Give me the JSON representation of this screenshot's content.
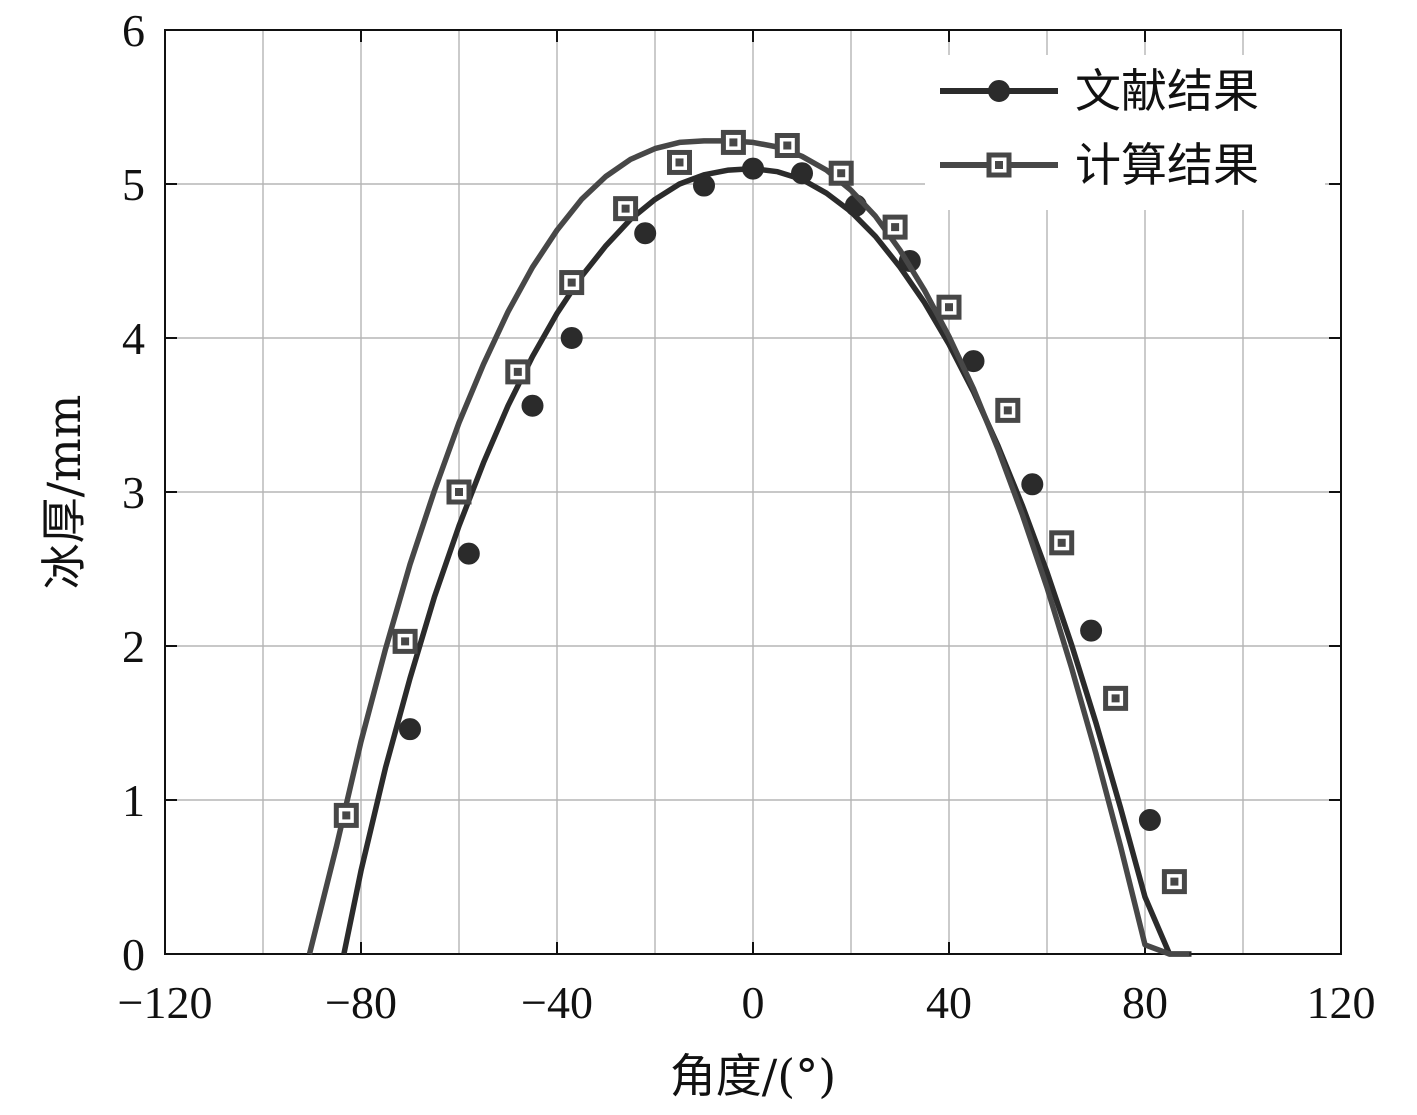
{
  "chart_data": {
    "type": "line",
    "xlabel": "角度/(°)",
    "ylabel": "冰厚/mm",
    "xlim": [
      -120,
      120
    ],
    "ylim": [
      0,
      6
    ],
    "xticks": [
      "−120",
      "−80",
      "−40",
      "0",
      "40",
      "80",
      "120"
    ],
    "yticks": [
      "0",
      "1",
      "2",
      "3",
      "4",
      "5",
      "6"
    ],
    "grid": true,
    "legend_position": "top-right",
    "series": [
      {
        "name": "文献结果",
        "marker": "circle",
        "color": "#2b2b2b",
        "curve_x": [
          -83.5,
          -80,
          -75,
          -70,
          -65,
          -60,
          -55,
          -50,
          -45,
          -40,
          -35,
          -30,
          -25,
          -20,
          -15,
          -10,
          -5,
          0,
          5,
          10,
          15,
          20,
          25,
          30,
          35,
          40,
          45,
          50,
          55,
          60,
          65,
          70,
          75,
          80,
          85,
          89.5
        ],
        "curve_y": [
          0.0,
          0.54,
          1.21,
          1.79,
          2.32,
          2.78,
          3.19,
          3.56,
          3.88,
          4.16,
          4.4,
          4.6,
          4.77,
          4.9,
          5.0,
          5.06,
          5.09,
          5.1,
          5.08,
          5.03,
          4.94,
          4.82,
          4.66,
          4.46,
          4.23,
          3.96,
          3.65,
          3.3,
          2.91,
          2.48,
          2.01,
          1.5,
          0.95,
          0.37,
          0.0,
          0.0
        ],
        "points_x": [
          -70,
          -58,
          -45,
          -37,
          -22,
          -10,
          0,
          10,
          21,
          32,
          45,
          57,
          69,
          81
        ],
        "points_y": [
          1.46,
          2.6,
          3.56,
          4.0,
          4.68,
          4.99,
          5.1,
          5.07,
          4.86,
          4.5,
          3.85,
          3.05,
          2.1,
          0.87
        ]
      },
      {
        "name": "计算结果",
        "marker": "square",
        "color": "#474747",
        "curve_x": [
          -90.5,
          -85,
          -80,
          -75,
          -70,
          -65,
          -60,
          -55,
          -50,
          -45,
          -40,
          -35,
          -30,
          -25,
          -20,
          -15,
          -10,
          -5,
          0,
          5,
          10,
          15,
          20,
          25,
          30,
          35,
          40,
          45,
          50,
          55,
          60,
          65,
          70,
          75,
          80,
          85,
          89
        ],
        "curve_y": [
          0.0,
          0.7,
          1.38,
          1.98,
          2.53,
          3.01,
          3.45,
          3.83,
          4.17,
          4.46,
          4.7,
          4.9,
          5.05,
          5.16,
          5.23,
          5.27,
          5.28,
          5.28,
          5.27,
          5.24,
          5.18,
          5.09,
          4.96,
          4.79,
          4.57,
          4.31,
          4.01,
          3.67,
          3.28,
          2.85,
          2.38,
          1.86,
          1.3,
          0.7,
          0.06,
          0.0,
          0.0
        ],
        "points_x": [
          -83,
          -71,
          -60,
          -48,
          -37,
          -26,
          -15,
          -4,
          7,
          18,
          29,
          40,
          52,
          63,
          74,
          86
        ],
        "points_y": [
          0.9,
          2.03,
          3.0,
          3.78,
          4.36,
          4.84,
          5.14,
          5.27,
          5.25,
          5.07,
          4.72,
          4.2,
          3.53,
          2.67,
          1.66,
          0.47
        ]
      }
    ]
  }
}
